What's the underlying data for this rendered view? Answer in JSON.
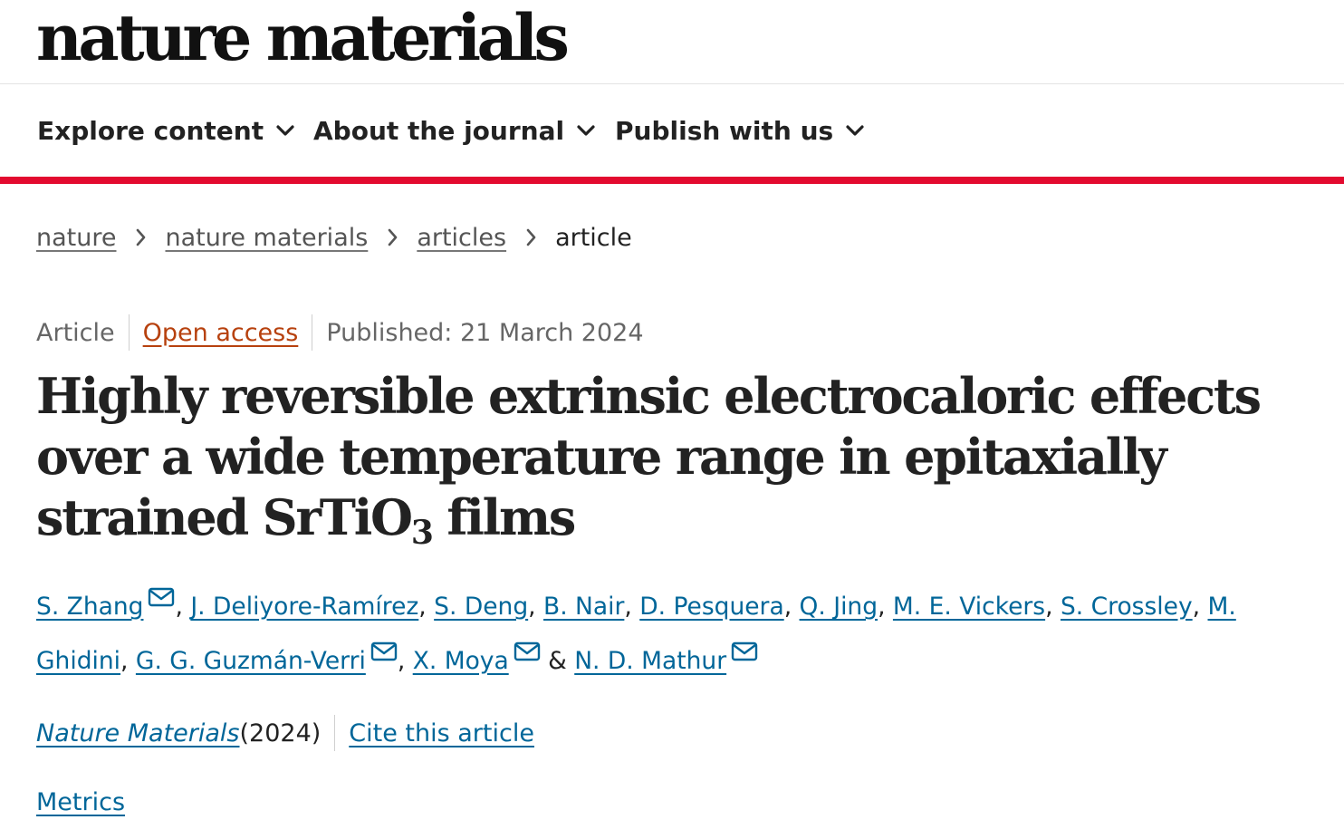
{
  "logo": "nature materials",
  "nav": {
    "items": [
      {
        "label": "Explore content"
      },
      {
        "label": "About the journal"
      },
      {
        "label": "Publish with us"
      }
    ]
  },
  "breadcrumb": {
    "items": [
      "nature",
      "nature materials",
      "articles"
    ],
    "current": "article"
  },
  "meta": {
    "type": "Article",
    "access": "Open access",
    "published": "Published: 21 March 2024"
  },
  "title": {
    "main": "Highly reversible extrinsic electrocaloric effects over a wide temperature range in epitaxially strained SrTiO",
    "subscript": "3",
    "tail": " films"
  },
  "authors": [
    {
      "name": "S. Zhang",
      "sep": ", "
    },
    {
      "name": "J. Deliyore-Ramírez",
      "sep": ", "
    },
    {
      "name": "S. Deng",
      "sep": ", "
    },
    {
      "name": "B. Nair",
      "sep": ", "
    },
    {
      "name": "D. Pesquera",
      "sep": ", "
    },
    {
      "name": "Q. Jing",
      "sep": ", "
    },
    {
      "name": "M. E. Vickers",
      "sep": ", "
    },
    {
      "name": "S. Crossley",
      "sep": ", "
    },
    {
      "name": "M. Ghidini",
      "sep": ", "
    },
    {
      "name": "G. G. Guzmán-Verri",
      "sep": ", "
    },
    {
      "name": "X. Moya",
      "sep": " & "
    },
    {
      "name": "N. D. Mathur",
      "sep": ""
    }
  ],
  "citation": {
    "journal": "Nature Materials",
    "year": " (2024)",
    "cite_label": "Cite this article"
  },
  "metrics_label": "Metrics",
  "colors": {
    "accent_bar": "#e30a2f",
    "link": "#006699",
    "open_access": "#b7410e"
  }
}
